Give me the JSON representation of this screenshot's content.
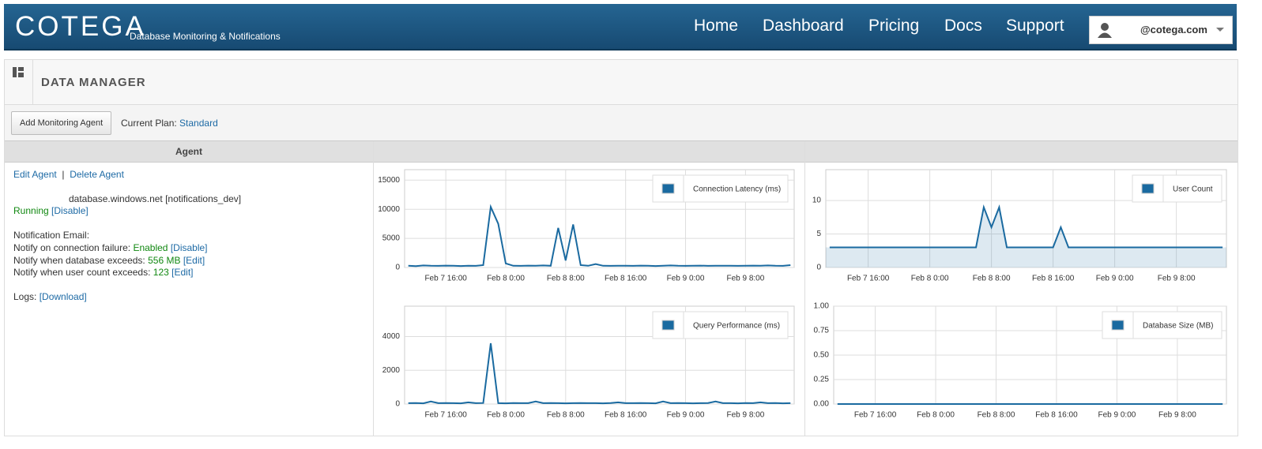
{
  "header": {
    "logo": "COTEGA",
    "tagline": "Database Monitoring & Notifications",
    "nav": [
      "Home",
      "Dashboard",
      "Pricing",
      "Docs",
      "Support"
    ],
    "user": "@cotega.com"
  },
  "panel": {
    "title": "DATA MANAGER",
    "button": "Add Monitoring Agent",
    "plan_label": "Current Plan:",
    "plan": "Standard",
    "column": "Agent"
  },
  "agent": {
    "edit": "Edit Agent",
    "sep": "|",
    "delete": "Delete Agent",
    "host": "database.windows.net [notifications_dev]",
    "status": "Running",
    "status_action": "[Disable]",
    "email_label": "Notification Email:",
    "failure_label": "Notify on connection failure:",
    "failure_value": "Enabled",
    "failure_action": "[Disable]",
    "size_label": "Notify when database exceeds:",
    "size_value": "556 MB",
    "size_action": "[Edit]",
    "users_label": "Notify when user count exceeds:",
    "users_value": "123",
    "users_action": "[Edit]",
    "logs_label": "Logs:",
    "logs_action": "[Download]"
  },
  "chart_data": [
    {
      "type": "line",
      "grid": true,
      "categories": [
        null,
        null,
        null,
        null,
        null,
        "Feb 7 16:00",
        null,
        null,
        null,
        null,
        null,
        null,
        null,
        "Feb 8 0:00",
        null,
        null,
        null,
        null,
        null,
        null,
        null,
        "Feb 8 8:00",
        null,
        null,
        null,
        null,
        null,
        null,
        null,
        "Feb 8 16:00",
        null,
        null,
        null,
        null,
        null,
        null,
        null,
        "Feb 9 0:00",
        null,
        null,
        null,
        null,
        null,
        null,
        null,
        "Feb 9 8:00",
        null,
        null,
        null,
        null,
        null,
        null
      ],
      "ylim": [
        0,
        16800
      ],
      "yticks": [
        0,
        5000,
        10000,
        15000
      ],
      "series": [
        {
          "name": "Connection Latency (ms)",
          "color": "#1a6aa0",
          "values": [
            300,
            250,
            350,
            300,
            280,
            320,
            300,
            260,
            310,
            290,
            400,
            10400,
            7500,
            700,
            300,
            280,
            320,
            300,
            350,
            300,
            6800,
            1200,
            7400,
            400,
            300,
            600,
            300,
            280,
            310,
            300,
            290,
            320,
            300,
            260,
            300,
            350,
            300,
            280,
            300,
            320,
            290,
            300,
            310,
            300,
            280,
            300,
            320,
            300,
            350,
            300,
            280,
            400
          ]
        }
      ]
    },
    {
      "type": "area",
      "grid": true,
      "categories": [
        null,
        null,
        null,
        null,
        null,
        "Feb 7 16:00",
        null,
        null,
        null,
        null,
        null,
        null,
        null,
        "Feb 8 0:00",
        null,
        null,
        null,
        null,
        null,
        null,
        null,
        "Feb 8 8:00",
        null,
        null,
        null,
        null,
        null,
        null,
        null,
        "Feb 8 16:00",
        null,
        null,
        null,
        null,
        null,
        null,
        null,
        "Feb 9 0:00",
        null,
        null,
        null,
        null,
        null,
        null,
        null,
        "Feb 9 8:00",
        null,
        null,
        null,
        null,
        null,
        null
      ],
      "ylim": [
        0,
        14.6
      ],
      "yticks": [
        0,
        5,
        10
      ],
      "series": [
        {
          "name": "User Count",
          "color": "#1a6aa0",
          "values": [
            3,
            3,
            3,
            3,
            3,
            3,
            3,
            3,
            3,
            3,
            3,
            3,
            3,
            3,
            3,
            3,
            3,
            3,
            3,
            3,
            9,
            6,
            9,
            3,
            3,
            3,
            3,
            3,
            3,
            3,
            6,
            3,
            3,
            3,
            3,
            3,
            3,
            3,
            3,
            3,
            3,
            3,
            3,
            3,
            3,
            3,
            3,
            3,
            3,
            3,
            3,
            3
          ]
        }
      ]
    },
    {
      "type": "line",
      "grid": true,
      "categories": [
        null,
        null,
        null,
        null,
        null,
        "Feb 7 16:00",
        null,
        null,
        null,
        null,
        null,
        null,
        null,
        "Feb 8 0:00",
        null,
        null,
        null,
        null,
        null,
        null,
        null,
        "Feb 8 8:00",
        null,
        null,
        null,
        null,
        null,
        null,
        null,
        "Feb 8 16:00",
        null,
        null,
        null,
        null,
        null,
        null,
        null,
        "Feb 9 0:00",
        null,
        null,
        null,
        null,
        null,
        null,
        null,
        "Feb 9 8:00",
        null,
        null,
        null,
        null,
        null,
        null
      ],
      "ylim": [
        0,
        5800
      ],
      "yticks": [
        0,
        2000,
        4000
      ],
      "series": [
        {
          "name": "Query Performance (ms)",
          "color": "#1a6aa0",
          "values": [
            50,
            60,
            40,
            150,
            50,
            60,
            50,
            40,
            100,
            50,
            60,
            3600,
            50,
            40,
            60,
            50,
            50,
            150,
            50,
            60,
            50,
            40,
            50,
            60,
            50,
            50,
            40,
            60,
            100,
            50,
            50,
            60,
            50,
            40,
            150,
            50,
            60,
            50,
            40,
            50,
            60,
            150,
            50,
            50,
            40,
            60,
            50,
            100,
            50,
            60,
            40,
            50
          ]
        }
      ]
    },
    {
      "type": "line",
      "grid": true,
      "categories": [
        null,
        null,
        null,
        null,
        null,
        "Feb 7 16:00",
        null,
        null,
        null,
        null,
        null,
        null,
        null,
        "Feb 8 0:00",
        null,
        null,
        null,
        null,
        null,
        null,
        null,
        "Feb 8 8:00",
        null,
        null,
        null,
        null,
        null,
        null,
        null,
        "Feb 8 16:00",
        null,
        null,
        null,
        null,
        null,
        null,
        null,
        "Feb 9 0:00",
        null,
        null,
        null,
        null,
        null,
        null,
        null,
        "Feb 9 8:00",
        null,
        null,
        null,
        null,
        null,
        null
      ],
      "ylim": [
        0,
        1
      ],
      "yticks": [
        {
          "value": 0,
          "label": "0.00"
        },
        {
          "value": 0.25,
          "label": "0.25"
        },
        {
          "value": 0.5,
          "label": "0.50"
        },
        {
          "value": 0.75,
          "label": "0.75"
        },
        {
          "value": 1,
          "label": "1.00"
        }
      ],
      "series": [
        {
          "name": "Database Size (MB)",
          "color": "#1a6aa0",
          "values": [
            0,
            0,
            0,
            0,
            0,
            0,
            0,
            0,
            0,
            0,
            0,
            0,
            0,
            0,
            0,
            0,
            0,
            0,
            0,
            0,
            0,
            0,
            0,
            0,
            0,
            0,
            0,
            0,
            0,
            0,
            0,
            0,
            0,
            0,
            0,
            0,
            0,
            0,
            0,
            0,
            0,
            0,
            0,
            0,
            0,
            0,
            0,
            0,
            0,
            0,
            0,
            0
          ]
        }
      ]
    }
  ]
}
